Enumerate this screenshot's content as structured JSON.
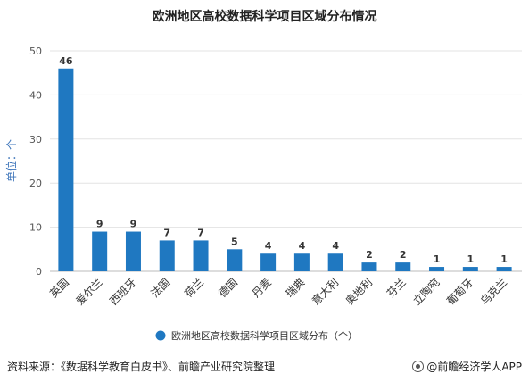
{
  "chart_data": {
    "type": "bar",
    "title": "欧洲地区高校数据科学项目区域分布情况",
    "ylabel": "单位：个",
    "xlabel": "",
    "categories": [
      "英国",
      "爱尔兰",
      "西班牙",
      "法国",
      "荷兰",
      "德国",
      "丹麦",
      "瑞典",
      "意大利",
      "奥地利",
      "芬兰",
      "立陶宛",
      "葡萄牙",
      "乌克兰"
    ],
    "series": [
      {
        "name": "欧洲地区高校数据科学项目区域分布（个）",
        "values": [
          46,
          9,
          9,
          7,
          7,
          5,
          4,
          4,
          4,
          2,
          2,
          1,
          1,
          1
        ]
      }
    ],
    "ylim": [
      0,
      50
    ],
    "yticks": [
      0,
      10,
      20,
      30,
      40,
      50
    ],
    "grid": true,
    "legend_position": "bottom",
    "bar_color": "#1F78C1"
  },
  "footer": {
    "source": "资料来源：《数据科学教育白皮书》、前瞻产业研究院整理",
    "brand": "@前瞻经济学人APP"
  }
}
